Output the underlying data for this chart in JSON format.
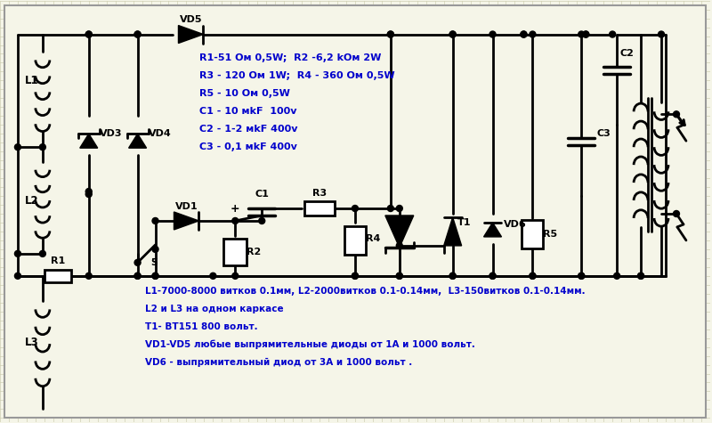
{
  "bg_color": "#f5f5e8",
  "grid_color": "#c8c8a8",
  "line_color": "#000000",
  "lw": 2.0,
  "specs_text": [
    "R1-51 Ом 0,5W;  R2 -6,2 kОм 2W",
    "R3 - 120 Ом 1W;  R4 - 360 Ом 0,5W",
    "R5 - 10 Ом 0,5W",
    "C1 - 10 мkF  100v",
    "C2 - 1-2 мkF 400v",
    "C3 - 0,1 мkF 400v"
  ],
  "bottom_text": [
    "L1-7000-8000 витков 0.1мм, L2-2000витков 0.1-0.14мм,  L3-150витков 0.1-0.14мм.",
    "L2 и L3 на одном каркасе",
    "T1- ВТ151 800 вольт.",
    "VD1-VD5 любые выпрямительные диоды от 1А и 1000 вольт.",
    "VD6 - выпрямительный диод от 3А и 1000 вольт ."
  ]
}
